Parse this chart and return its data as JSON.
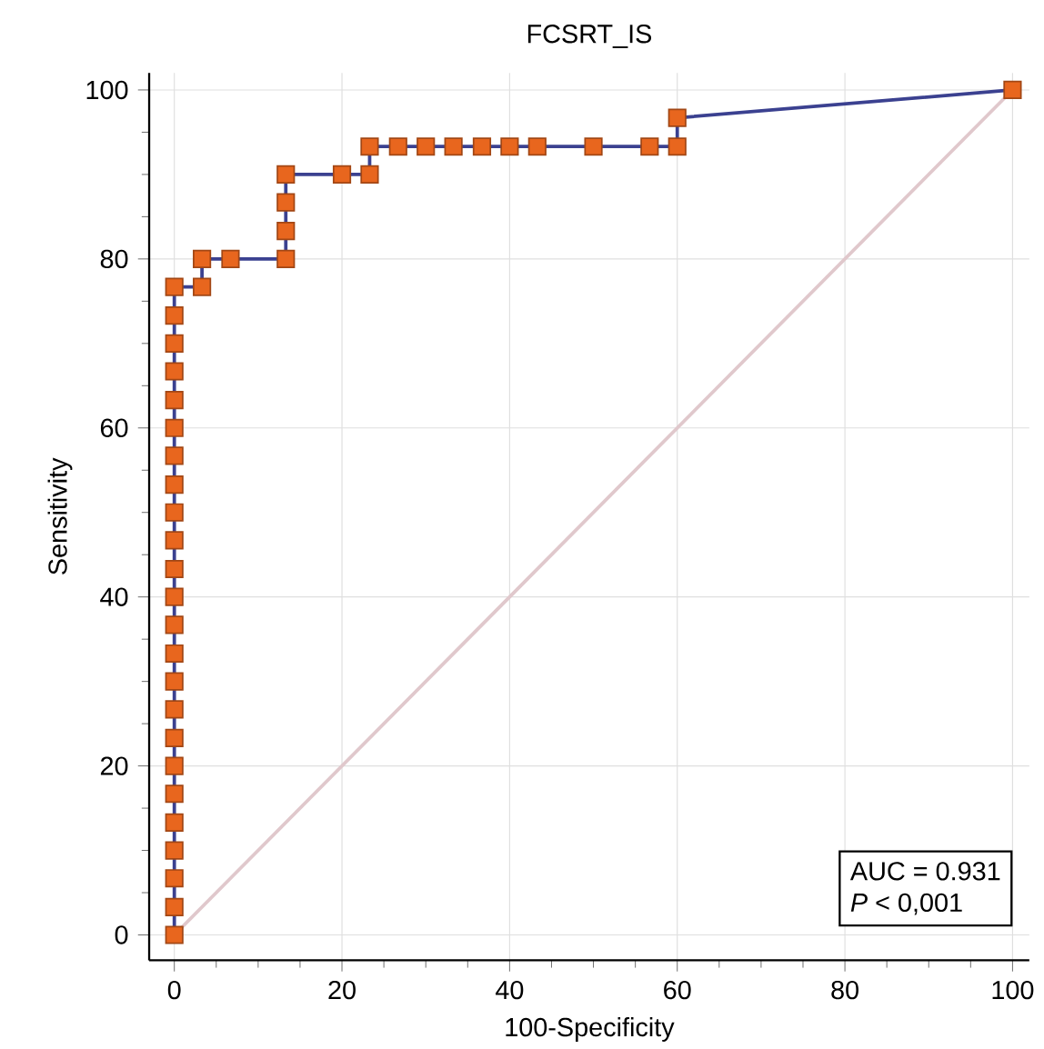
{
  "chart_data": {
    "type": "line",
    "title": "FCSRT_IS",
    "xlabel": "100-Specificity",
    "ylabel": "Sensitivity",
    "xlim": [
      -3,
      102
    ],
    "ylim": [
      -3,
      102
    ],
    "xticks": [
      0,
      20,
      40,
      60,
      80,
      100
    ],
    "yticks": [
      0,
      20,
      40,
      60,
      80,
      100
    ],
    "grid": true,
    "marker": "square",
    "series": [
      {
        "color": "#3b4190",
        "colors": [
          "#e8661e",
          "#e8661e",
          "#e8661e",
          "#e8661e",
          "#e8661e",
          "#e8661e",
          "#e8661e",
          "#e8661e",
          "#e8661e",
          "#e8661e",
          "#e8661e",
          "#e8661e",
          "#e8661e",
          "#e8661e",
          "#e8661e",
          "#e8661e",
          "#e8661e",
          "#e8661e",
          "#e8661e",
          "#e8661e",
          "#e8661e",
          "#e8661e",
          "#e8661e",
          "#e8661e",
          "#e8661e",
          "#e8661e",
          "#e8661e",
          "#e8661e",
          "#e8661e",
          "#e8661e",
          "#e8661e",
          "#e8661e",
          "#e8661e",
          "#e8661e",
          "#e8661e",
          "#e8661e",
          "#e8661e",
          "#e8661e",
          "#e8661e",
          "#e8661e",
          "#e8661e",
          "#e8661e",
          "#e8661e",
          "#e8661e",
          "#e8661e"
        ],
        "x": [
          0,
          0,
          0,
          0,
          0,
          0,
          0,
          0,
          0,
          0,
          0,
          0,
          0,
          0,
          0,
          0,
          0,
          0,
          0,
          0,
          0,
          0,
          0,
          0,
          3.3,
          3.3,
          6.7,
          13.3,
          13.3,
          13.3,
          13.3,
          20,
          23.3,
          23.3,
          26.7,
          30,
          33.3,
          36.7,
          40,
          43.3,
          50,
          56.7,
          60,
          60,
          100
        ],
        "values": [
          0,
          3.3,
          6.7,
          10,
          13.3,
          16.7,
          20,
          23.3,
          26.7,
          30,
          33.3,
          36.7,
          40,
          43.3,
          46.7,
          50,
          53.3,
          56.7,
          60,
          63.3,
          66.7,
          70,
          73.3,
          76.7,
          76.7,
          80,
          80,
          80,
          83.3,
          86.7,
          90,
          90,
          90,
          93.3,
          93.3,
          93.3,
          93.3,
          93.3,
          93.3,
          93.3,
          93.3,
          93.3,
          93.3,
          96.7,
          100
        ]
      },
      {
        "color": "#e0c8cc",
        "marker": "none",
        "x": [
          0,
          100
        ],
        "values": [
          0,
          100
        ]
      }
    ],
    "annotations": [
      "AUC = 0.931",
      "*P* < 0,001"
    ]
  }
}
